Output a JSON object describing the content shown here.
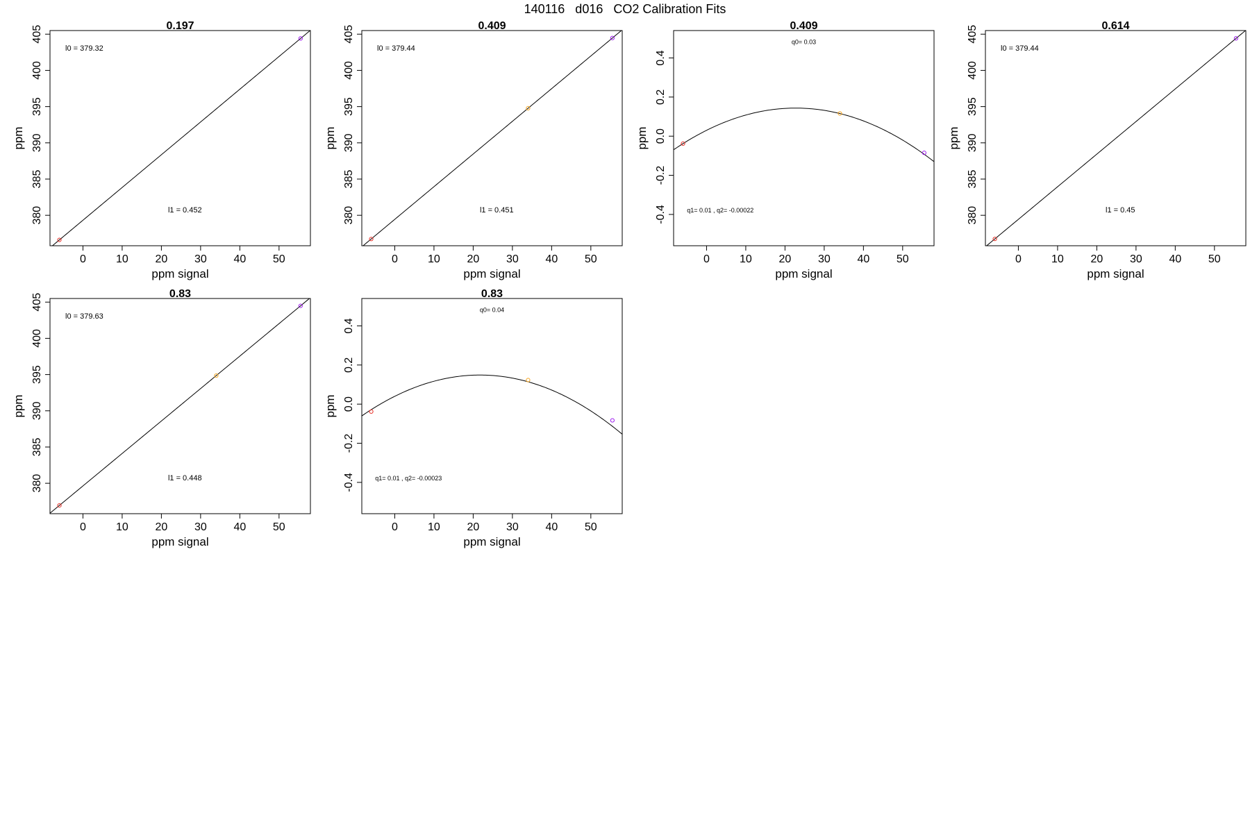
{
  "figure_title": "140116   d016   CO2 Calibration Fits",
  "chart_data": [
    {
      "type": "scatter",
      "title": "0.197",
      "xlabel": "ppm signal",
      "ylabel": "ppm",
      "xlim": [
        -8.4,
        58
      ],
      "ylim": [
        375.8,
        405.5
      ],
      "x_ticks": [
        0,
        10,
        20,
        30,
        40,
        50
      ],
      "y_ticks": [
        380,
        385,
        390,
        395,
        400,
        405
      ],
      "grid": false,
      "points": [
        {
          "x": -6,
          "y": 376.61,
          "color": "#e8322a"
        },
        {
          "x": 55.5,
          "y": 404.41,
          "color": "#a020f0"
        }
      ],
      "fit": {
        "kind": "linear",
        "intercept": 379.32,
        "slope": 0.452
      },
      "annotations": [
        {
          "text": "l0 =  379.32",
          "x": -4.5,
          "y": 402.7,
          "anchor": "start",
          "size": 11
        },
        {
          "text": "l1 =  0.452",
          "x": 26,
          "y": 380.4,
          "anchor": "middle",
          "size": 11
        }
      ]
    },
    {
      "type": "scatter",
      "title": "0.409",
      "xlabel": "ppm signal",
      "ylabel": "ppm",
      "xlim": [
        -8.4,
        58
      ],
      "ylim": [
        375.8,
        405.5
      ],
      "x_ticks": [
        0,
        10,
        20,
        30,
        40,
        50
      ],
      "y_ticks": [
        380,
        385,
        390,
        395,
        400,
        405
      ],
      "grid": false,
      "points": [
        {
          "x": -6,
          "y": 376.73,
          "color": "#e8322a"
        },
        {
          "x": 34,
          "y": 394.78,
          "color": "#f5a623"
        },
        {
          "x": 55.5,
          "y": 404.47,
          "color": "#a020f0"
        }
      ],
      "fit": {
        "kind": "linear",
        "intercept": 379.44,
        "slope": 0.451
      },
      "annotations": [
        {
          "text": "l0 =  379.44",
          "x": -4.5,
          "y": 402.7,
          "anchor": "start",
          "size": 11
        },
        {
          "text": "l1 =  0.451",
          "x": 26,
          "y": 380.4,
          "anchor": "middle",
          "size": 11
        }
      ]
    },
    {
      "type": "scatter",
      "title": "0.409",
      "xlabel": "ppm signal",
      "ylabel": "ppm",
      "xlim": [
        -8.4,
        58
      ],
      "ylim": [
        -0.56,
        0.54
      ],
      "x_ticks": [
        0,
        10,
        20,
        30,
        40,
        50
      ],
      "y_ticks": [
        -0.4,
        -0.2,
        0.0,
        0.2,
        0.4
      ],
      "y_tick_labels": [
        "-0.4",
        "-0.2",
        "0.0",
        "0.2",
        "0.4"
      ],
      "grid": false,
      "points": [
        {
          "x": -6,
          "y": -0.038,
          "color": "#e8322a"
        },
        {
          "x": 34,
          "y": 0.116,
          "color": "#f5a623"
        },
        {
          "x": 55.5,
          "y": -0.085,
          "color": "#a020f0"
        }
      ],
      "fit": {
        "kind": "quadratic",
        "a0": 0.03,
        "a1": 0.01,
        "a2": -0.00022
      },
      "annotations": [
        {
          "text": "q0= 0.03",
          "x": 24.8,
          "y": 0.47,
          "anchor": "middle",
          "size": 9
        },
        {
          "text": "q1= 0.01 , q2= -0.00022",
          "x": -5,
          "y": -0.39,
          "anchor": "start",
          "size": 9
        }
      ]
    },
    {
      "type": "scatter",
      "title": "0.614",
      "xlabel": "ppm signal",
      "ylabel": "ppm",
      "xlim": [
        -8.4,
        58
      ],
      "ylim": [
        375.8,
        405.5
      ],
      "x_ticks": [
        0,
        10,
        20,
        30,
        40,
        50
      ],
      "y_ticks": [
        380,
        385,
        390,
        395,
        400,
        405
      ],
      "grid": false,
      "points": [
        {
          "x": -6,
          "y": 376.74,
          "color": "#e8322a"
        },
        {
          "x": 55.5,
          "y": 404.42,
          "color": "#a020f0"
        }
      ],
      "fit": {
        "kind": "linear",
        "intercept": 379.44,
        "slope": 0.45
      },
      "annotations": [
        {
          "text": "l0 =  379.44",
          "x": -4.5,
          "y": 402.7,
          "anchor": "start",
          "size": 11
        },
        {
          "text": "l1 =  0.45",
          "x": 26,
          "y": 380.4,
          "anchor": "middle",
          "size": 11
        }
      ]
    },
    {
      "type": "scatter",
      "title": "0.83",
      "xlabel": "ppm signal",
      "ylabel": "ppm",
      "xlim": [
        -8.4,
        58
      ],
      "ylim": [
        375.8,
        405.5
      ],
      "x_ticks": [
        0,
        10,
        20,
        30,
        40,
        50
      ],
      "y_ticks": [
        380,
        385,
        390,
        395,
        400,
        405
      ],
      "grid": false,
      "points": [
        {
          "x": -6,
          "y": 376.94,
          "color": "#e8322a"
        },
        {
          "x": 34,
          "y": 394.86,
          "color": "#f5a623"
        },
        {
          "x": 55.5,
          "y": 404.49,
          "color": "#a020f0"
        }
      ],
      "fit": {
        "kind": "linear",
        "intercept": 379.63,
        "slope": 0.448
      },
      "annotations": [
        {
          "text": "l0 =  379.63",
          "x": -4.5,
          "y": 402.7,
          "anchor": "start",
          "size": 11
        },
        {
          "text": "l1 =  0.448",
          "x": 26,
          "y": 380.4,
          "anchor": "middle",
          "size": 11
        }
      ]
    },
    {
      "type": "scatter",
      "title": "0.83",
      "xlabel": "ppm signal",
      "ylabel": "ppm",
      "xlim": [
        -8.4,
        58
      ],
      "ylim": [
        -0.56,
        0.54
      ],
      "x_ticks": [
        0,
        10,
        20,
        30,
        40,
        50
      ],
      "y_ticks": [
        -0.4,
        -0.2,
        0.0,
        0.2,
        0.4
      ],
      "y_tick_labels": [
        "-0.4",
        "-0.2",
        "0.0",
        "0.2",
        "0.4"
      ],
      "grid": false,
      "points": [
        {
          "x": -6,
          "y": -0.038,
          "color": "#e8322a"
        },
        {
          "x": 34,
          "y": 0.123,
          "color": "#f5a623"
        },
        {
          "x": 55.5,
          "y": -0.083,
          "color": "#a020f0"
        }
      ],
      "fit": {
        "kind": "quadratic",
        "a0": 0.04,
        "a1": 0.01,
        "a2": -0.00023
      },
      "annotations": [
        {
          "text": "q0= 0.04",
          "x": 24.8,
          "y": 0.47,
          "anchor": "middle",
          "size": 9
        },
        {
          "text": "q1= 0.01 , q2= -0.00023",
          "x": -5,
          "y": -0.39,
          "anchor": "start",
          "size": 9
        }
      ]
    }
  ]
}
